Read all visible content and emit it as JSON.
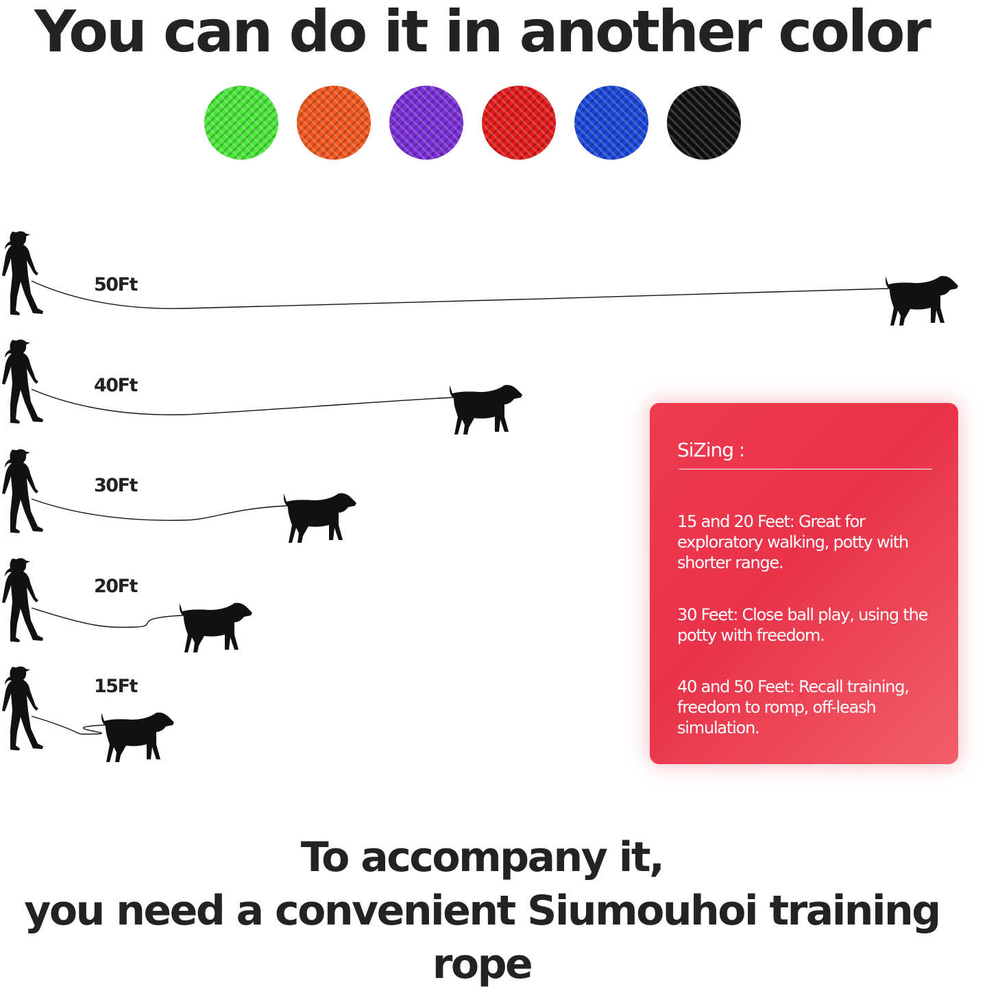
{
  "title": "You can do it in another color",
  "colors": [
    {
      "name": "green",
      "hex": "#4be83a"
    },
    {
      "name": "orange",
      "hex": "#f2581e"
    },
    {
      "name": "purple",
      "hex": "#7a2fd6"
    },
    {
      "name": "red",
      "hex": "#e41b1b"
    },
    {
      "name": "blue",
      "hex": "#1a46d9"
    },
    {
      "name": "black",
      "hex": "#111111"
    }
  ],
  "lengths": [
    {
      "label": "50Ft",
      "feet": 50
    },
    {
      "label": "40Ft",
      "feet": 40
    },
    {
      "label": "30Ft",
      "feet": 30
    },
    {
      "label": "20Ft",
      "feet": 20
    },
    {
      "label": "15Ft",
      "feet": 15
    }
  ],
  "sizing": {
    "heading": "SiZing :",
    "items": [
      "15 and 20 Feet: Great for exploratory walking, potty with shorter range.",
      "30 Feet: Close ball play, using the potty with freedom.",
      "40 and 50 Feet: Recall training, freedom to romp, off-leash simulation."
    ]
  },
  "footer": {
    "line1": "To accompany it,",
    "line2": "you need a convenient Siumouhoi training rope"
  }
}
